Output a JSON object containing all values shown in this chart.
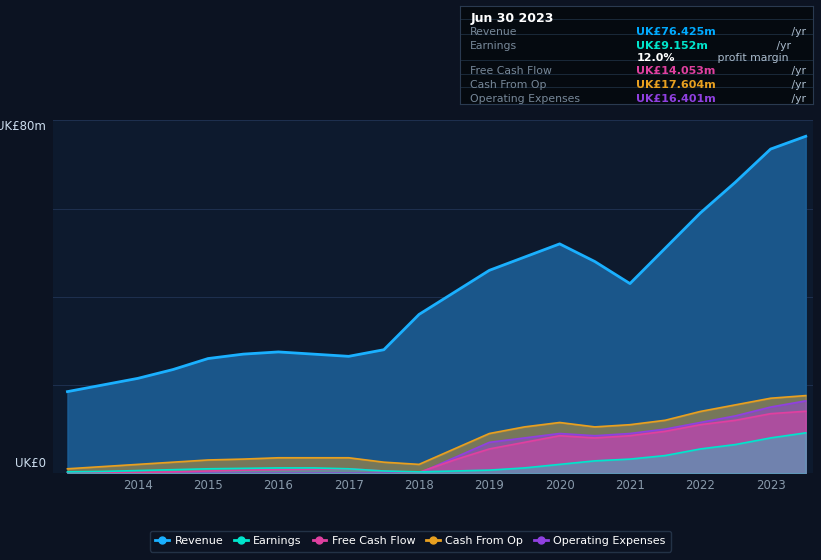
{
  "bg_color": "#0c1322",
  "plot_bg_color": "#0d1a2e",
  "title_box": {
    "date": "Jun 30 2023",
    "rows": [
      {
        "label": "Revenue",
        "value": "UK£76.425m",
        "suffix": " /yr",
        "value_color": "#00aaff"
      },
      {
        "label": "Earnings",
        "value": "UK£9.152m",
        "suffix": " /yr",
        "value_color": "#00e5cc"
      },
      {
        "label": "",
        "value": "12.0%",
        "suffix": " profit margin",
        "value_color": "#ffffff",
        "bold_value": true
      },
      {
        "label": "Free Cash Flow",
        "value": "UK£14.053m",
        "suffix": " /yr",
        "value_color": "#e040a0"
      },
      {
        "label": "Cash From Op",
        "value": "UK£17.604m",
        "suffix": " /yr",
        "value_color": "#e8a020"
      },
      {
        "label": "Operating Expenses",
        "value": "UK£16.401m",
        "suffix": " /yr",
        "value_color": "#9040e0"
      }
    ]
  },
  "years": [
    2013.0,
    2013.5,
    2014.0,
    2014.5,
    2015.0,
    2015.5,
    2016.0,
    2016.5,
    2017.0,
    2017.5,
    2018.0,
    2018.5,
    2019.0,
    2019.5,
    2020.0,
    2020.5,
    2021.0,
    2021.5,
    2022.0,
    2022.5,
    2023.0,
    2023.5
  ],
  "revenue": [
    18.5,
    20.0,
    21.5,
    23.5,
    26.0,
    27.0,
    27.5,
    27.0,
    26.5,
    28.0,
    36.0,
    41.0,
    46.0,
    49.0,
    52.0,
    48.0,
    43.0,
    51.0,
    59.0,
    66.0,
    73.5,
    76.4
  ],
  "earnings": [
    0.3,
    0.4,
    0.6,
    0.8,
    1.0,
    1.1,
    1.2,
    1.2,
    1.0,
    0.5,
    0.3,
    0.5,
    0.7,
    1.2,
    2.0,
    2.8,
    3.2,
    4.0,
    5.5,
    6.5,
    8.0,
    9.15
  ],
  "free_cash_flow": [
    0.0,
    0.1,
    0.2,
    0.3,
    0.5,
    0.7,
    0.8,
    0.9,
    1.0,
    0.5,
    0.2,
    3.0,
    5.5,
    7.0,
    8.5,
    8.0,
    8.5,
    9.5,
    11.0,
    12.0,
    13.5,
    14.05
  ],
  "cash_from_op": [
    1.0,
    1.5,
    2.0,
    2.5,
    3.0,
    3.2,
    3.5,
    3.5,
    3.5,
    2.5,
    2.0,
    5.5,
    9.0,
    10.5,
    11.5,
    10.5,
    11.0,
    12.0,
    14.0,
    15.5,
    17.0,
    17.6
  ],
  "op_expenses": [
    0.0,
    0.0,
    0.0,
    0.0,
    0.0,
    0.0,
    0.0,
    0.0,
    0.0,
    0.0,
    0.0,
    3.5,
    7.0,
    8.0,
    9.0,
    8.5,
    9.0,
    10.0,
    11.5,
    13.0,
    15.0,
    16.4
  ],
  "revenue_color": "#1ab0ff",
  "earnings_color": "#00e5cc",
  "fcf_color": "#e040a0",
  "cfop_color": "#e8a020",
  "opex_color": "#9040e0",
  "revenue_fill": "#1a4a7a",
  "ylim": [
    0,
    80
  ],
  "ylabel_top": "UK£80m",
  "ylabel_bottom": "UK£0",
  "xticks": [
    2014,
    2015,
    2016,
    2017,
    2018,
    2019,
    2020,
    2021,
    2022,
    2023
  ],
  "legend_labels": [
    "Revenue",
    "Earnings",
    "Free Cash Flow",
    "Cash From Op",
    "Operating Expenses"
  ],
  "legend_colors": [
    "#1ab0ff",
    "#00e5cc",
    "#e040a0",
    "#e8a020",
    "#9040e0"
  ]
}
